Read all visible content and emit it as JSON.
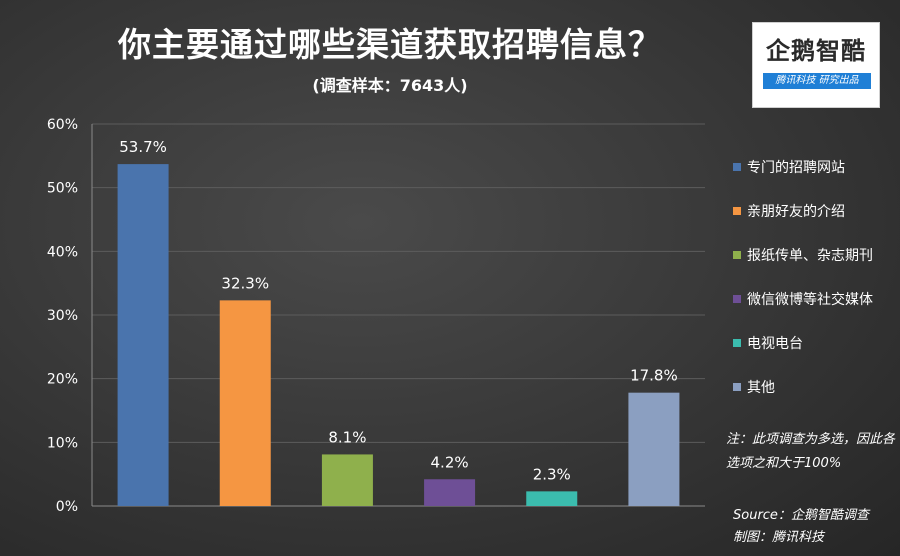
{
  "header": {
    "title": "你主要通过哪些渠道获取招聘信息？",
    "subtitle": "(调查样本：7643人)"
  },
  "logo": {
    "name": "企鹅智酷",
    "tagline": "腾讯科技 研究出品"
  },
  "note": "注：此项调查为多选，因此各选项之和大于100%",
  "source": {
    "line1": "Source：企鹅智酷调查",
    "line2": "制图：腾讯科技"
  },
  "chart_data": {
    "type": "bar",
    "categories": [
      "专门的招聘网站",
      "亲朋好友的介绍",
      "报纸传单、杂志期刊",
      "微信微博等社交媒体",
      "电视电台",
      "其他"
    ],
    "values": [
      53.7,
      32.3,
      8.1,
      4.2,
      2.3,
      17.8
    ],
    "data_labels": [
      "53.7%",
      "32.3%",
      "8.1%",
      "4.2%",
      "2.3%",
      "17.8%"
    ],
    "colors": [
      "#4a74ad",
      "#f59642",
      "#8fb04c",
      "#6e4f96",
      "#3bbcae",
      "#8b9fc1"
    ],
    "ylim": [
      0,
      60
    ],
    "yticks": [
      0,
      10,
      20,
      30,
      40,
      50,
      60
    ],
    "ytick_labels": [
      "0%",
      "10%",
      "20%",
      "30%",
      "40%",
      "50%",
      "60%"
    ],
    "grid": true,
    "legend_position": "right"
  }
}
